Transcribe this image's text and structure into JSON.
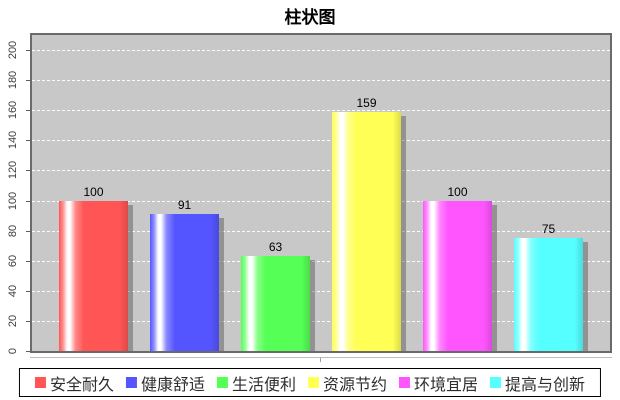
{
  "chart_data": {
    "type": "bar",
    "title": "柱状图",
    "categories": [
      "安全耐久",
      "健康舒适",
      "生活便利",
      "资源节约",
      "环境宜居",
      "提高与创新"
    ],
    "values": [
      100,
      91,
      63,
      159,
      100,
      75
    ],
    "colors": [
      "#FF5555",
      "#5555FF",
      "#55FF55",
      "#FFFF55",
      "#FF55FF",
      "#55FFFF"
    ],
    "value_labels": [
      "100",
      "91",
      "63",
      "159",
      "100",
      "75"
    ],
    "xlabel": "",
    "ylabel": "",
    "ylim": [
      0,
      210
    ],
    "yticks": [
      0,
      20,
      40,
      60,
      80,
      100,
      120,
      140,
      160,
      180,
      200
    ],
    "grid": "horizontal-dashed-white",
    "plot_background": "#C8C8C8",
    "legend_position": "bottom",
    "bar_style": "glossy-gradient-with-shadow"
  }
}
